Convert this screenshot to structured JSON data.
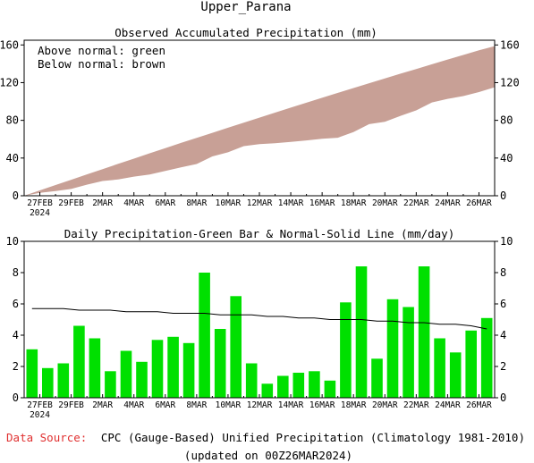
{
  "page_title": "Upper_Parana",
  "footer": {
    "source_label": "Data Source:",
    "source_text": "CPC (Gauge-Based) Unified Precipitation (Climatology 1981-2010)",
    "updated": "(updated on 00Z26MAR2024)"
  },
  "colors": {
    "below_normal_fill": "#c8a096",
    "daily_bar": "#00e000",
    "normal_line": "#000000",
    "source_label": "#e03030"
  },
  "chart_data": [
    {
      "type": "area",
      "title": "Observed Accumulated Precipitation (mm)",
      "legend": [
        "Above normal: green",
        "Below normal: brown"
      ],
      "legend_position": "top-left",
      "ylim": [
        0,
        165
      ],
      "yticks": [
        0,
        40,
        80,
        120,
        160
      ],
      "xtick_labels": [
        "27FEB",
        "29FEB",
        "2MAR",
        "4MAR",
        "6MAR",
        "8MAR",
        "10MAR",
        "12MAR",
        "14MAR",
        "16MAR",
        "18MAR",
        "20MAR",
        "22MAR",
        "24MAR",
        "26MAR"
      ],
      "xtick_sublabel": "2024",
      "x_start": "26FEB",
      "days": [
        0,
        1,
        2,
        3,
        4,
        5,
        6,
        7,
        8,
        9,
        10,
        11,
        12,
        13,
        14,
        15,
        16,
        17,
        18,
        19,
        20,
        21,
        22,
        23,
        24,
        25,
        26,
        27,
        28,
        29
      ],
      "series": [
        {
          "name": "observed",
          "values": [
            3.1,
            5.0,
            7.2,
            11.8,
            15.6,
            17.3,
            20.3,
            22.6,
            26.3,
            30.2,
            33.7,
            41.7,
            46.1,
            52.6,
            54.8,
            55.7,
            57.1,
            58.7,
            60.4,
            61.5,
            67.6,
            76.0,
            78.5,
            84.8,
            90.6,
            99.0,
            102.8,
            105.7,
            110.0,
            115.1
          ]
        },
        {
          "name": "normal",
          "values": [
            5.7,
            11.4,
            17.0,
            22.7,
            28.3,
            33.9,
            39.4,
            45.0,
            50.5,
            56.0,
            61.4,
            66.8,
            72.2,
            77.6,
            82.9,
            88.2,
            93.5,
            98.7,
            103.9,
            109.1,
            114.3,
            119.4,
            124.4,
            129.5,
            134.5,
            139.5,
            144.5,
            149.4,
            154.3,
            158.7
          ]
        }
      ]
    },
    {
      "type": "bar",
      "title": "Daily Precipitation-Green Bar & Normal-Solid Line (mm/day)",
      "ylim": [
        0,
        10
      ],
      "yticks": [
        0,
        2,
        4,
        6,
        8,
        10
      ],
      "xtick_labels": [
        "27FEB",
        "29FEB",
        "2MAR",
        "4MAR",
        "6MAR",
        "8MAR",
        "10MAR",
        "12MAR",
        "14MAR",
        "16MAR",
        "18MAR",
        "20MAR",
        "22MAR",
        "24MAR",
        "26MAR"
      ],
      "xtick_sublabel": "2024",
      "x_start": "26FEB",
      "days": [
        0,
        1,
        2,
        3,
        4,
        5,
        6,
        7,
        8,
        9,
        10,
        11,
        12,
        13,
        14,
        15,
        16,
        17,
        18,
        19,
        20,
        21,
        22,
        23,
        24,
        25,
        26,
        27,
        28,
        29
      ],
      "series": [
        {
          "name": "daily",
          "values": [
            3.1,
            1.9,
            2.2,
            4.6,
            3.8,
            1.7,
            3.0,
            2.3,
            3.7,
            3.9,
            3.5,
            8.0,
            4.4,
            6.5,
            2.2,
            0.9,
            1.4,
            1.6,
            1.7,
            1.1,
            6.1,
            8.4,
            2.5,
            6.3,
            5.8,
            8.4,
            3.8,
            2.9,
            4.3,
            5.1
          ]
        },
        {
          "name": "normal",
          "values": [
            5.7,
            5.7,
            5.7,
            5.6,
            5.6,
            5.6,
            5.5,
            5.5,
            5.5,
            5.4,
            5.4,
            5.4,
            5.3,
            5.3,
            5.3,
            5.2,
            5.2,
            5.1,
            5.1,
            5.0,
            5.0,
            5.0,
            4.9,
            4.9,
            4.8,
            4.8,
            4.7,
            4.7,
            4.6,
            4.4
          ]
        }
      ]
    }
  ]
}
